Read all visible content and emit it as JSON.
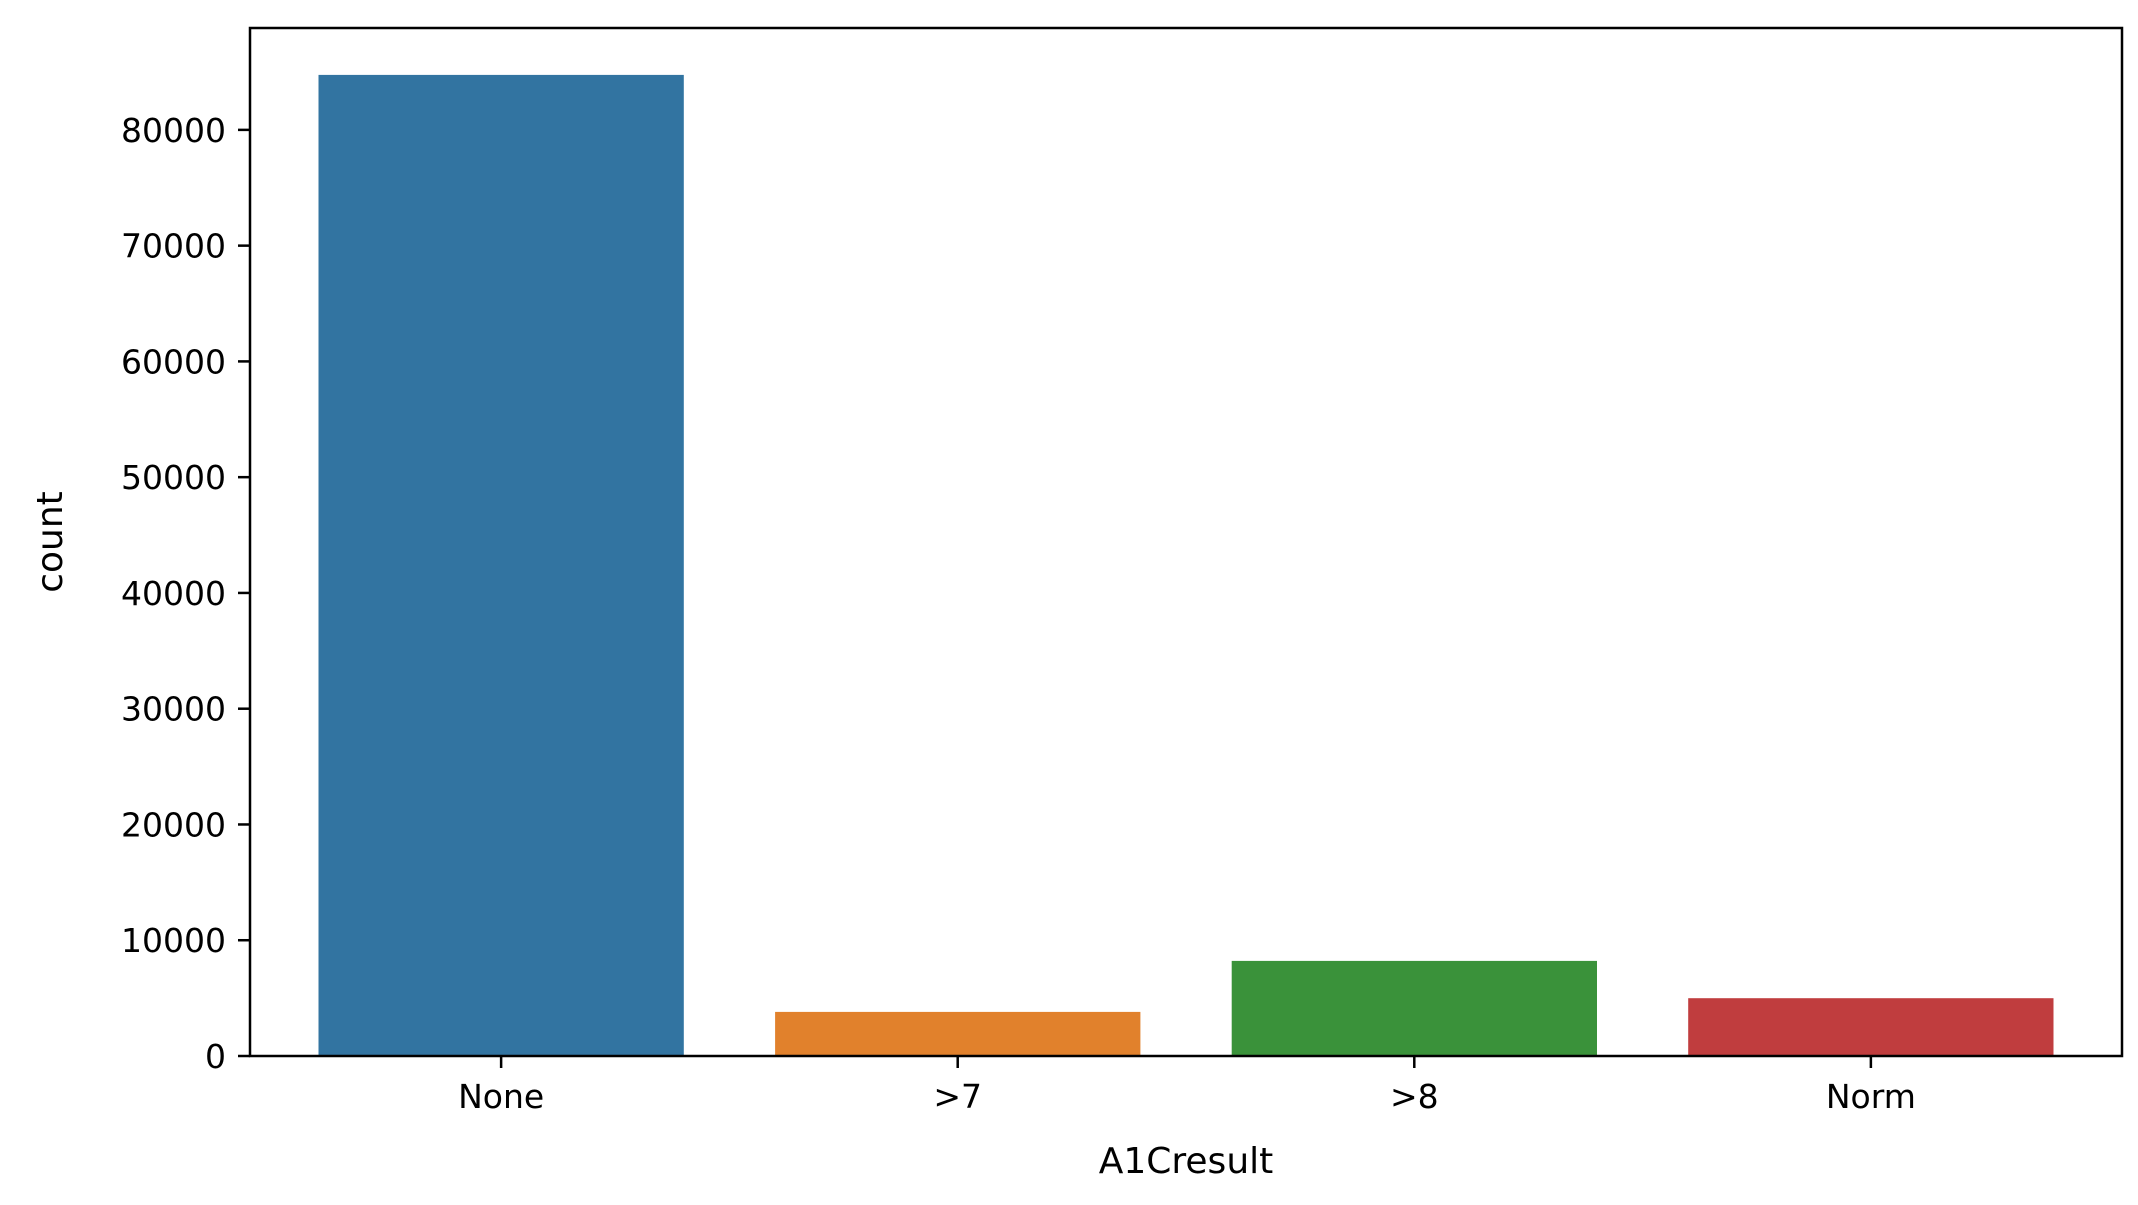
{
  "chart_data": {
    "type": "bar",
    "xlabel": "A1Cresult",
    "ylabel": "count",
    "categories": [
      "None",
      ">7",
      ">8",
      "Norm"
    ],
    "values": [
      84748,
      3812,
      8216,
      4990
    ],
    "colors": [
      "#3274a1",
      "#e1812c",
      "#3a923a",
      "#c03d3e"
    ],
    "ylim": [
      0,
      88800
    ],
    "yticks": [
      0,
      10000,
      20000,
      30000,
      40000,
      50000,
      60000,
      70000,
      80000
    ],
    "grid": false,
    "legend": "none"
  }
}
